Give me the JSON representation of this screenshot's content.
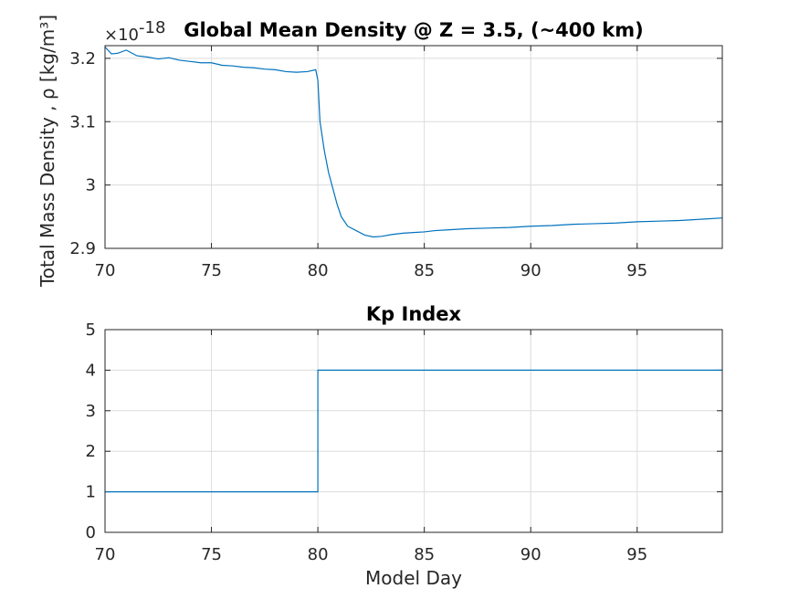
{
  "chart_data": [
    {
      "type": "line",
      "title": "Global Mean Density @ Z = 3.5, (~400 km)",
      "xlabel": "",
      "ylabel": "Total Mass Density , ρ [kg/m³]",
      "exponent_label": "×10",
      "exponent_power": "-18",
      "xlim": [
        70,
        99
      ],
      "ylim": [
        2.9,
        3.22
      ],
      "xticks": [
        70,
        75,
        80,
        85,
        90,
        95
      ],
      "xtick_labels": [
        "70",
        "75",
        "80",
        "85",
        "90",
        "95"
      ],
      "yticks": [
        2.9,
        3.0,
        3.1,
        3.2
      ],
      "ytick_labels": [
        "2.9",
        "3",
        "3.1",
        "3.2"
      ],
      "grid": true,
      "color": "#0072BD",
      "series": [
        {
          "x": [
            70.0,
            70.3,
            70.6,
            71.0,
            71.5,
            72.0,
            72.5,
            73.0,
            73.5,
            74.0,
            74.5,
            75.0,
            75.5,
            76.0,
            76.5,
            77.0,
            77.5,
            78.0,
            78.5,
            79.0,
            79.5,
            79.9,
            80.0,
            80.1,
            80.3,
            80.5,
            80.7,
            80.9,
            81.1,
            81.4,
            81.8,
            82.2,
            82.6,
            83.0,
            83.5,
            84.0,
            84.5,
            85.0,
            85.5,
            86.0,
            87.0,
            88.0,
            89.0,
            90.0,
            91.0,
            92.0,
            93.0,
            94.0,
            95.0,
            96.0,
            97.0,
            98.0,
            99.0
          ],
          "values": [
            3.218,
            3.207,
            3.208,
            3.213,
            3.204,
            3.202,
            3.199,
            3.201,
            3.197,
            3.195,
            3.193,
            3.193,
            3.189,
            3.188,
            3.186,
            3.185,
            3.183,
            3.182,
            3.179,
            3.178,
            3.179,
            3.182,
            3.165,
            3.1,
            3.055,
            3.02,
            2.995,
            2.97,
            2.95,
            2.935,
            2.928,
            2.921,
            2.918,
            2.919,
            2.922,
            2.924,
            2.925,
            2.926,
            2.928,
            2.929,
            2.931,
            2.932,
            2.933,
            2.935,
            2.936,
            2.938,
            2.939,
            2.94,
            2.942,
            2.943,
            2.944,
            2.946,
            2.948
          ]
        }
      ]
    },
    {
      "type": "line",
      "title": "Kp Index",
      "xlabel": "Model Day",
      "ylabel": "",
      "xlim": [
        70,
        99
      ],
      "ylim": [
        0,
        5
      ],
      "xticks": [
        70,
        75,
        80,
        85,
        90,
        95
      ],
      "xtick_labels": [
        "70",
        "75",
        "80",
        "85",
        "90",
        "95"
      ],
      "yticks": [
        0,
        1,
        2,
        3,
        4,
        5
      ],
      "ytick_labels": [
        "0",
        "1",
        "2",
        "3",
        "4",
        "5"
      ],
      "grid": true,
      "color": "#0072BD",
      "series": [
        {
          "x": [
            70,
            80,
            80,
            99
          ],
          "values": [
            1,
            1,
            4,
            4
          ]
        }
      ]
    }
  ]
}
